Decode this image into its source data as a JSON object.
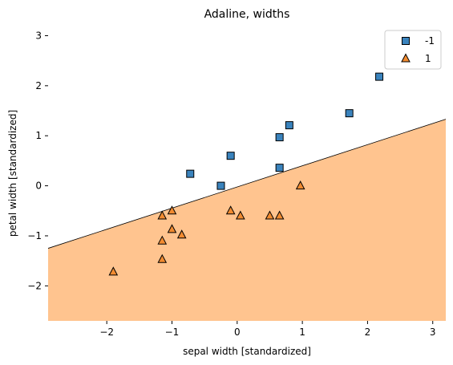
{
  "chart_data": {
    "type": "scatter",
    "title": "Adaline, widths",
    "xlabel": "sepal width [standardized]",
    "ylabel": "petal width [standardized]",
    "xlim": [
      -2.9,
      3.2
    ],
    "ylim": [
      -2.7,
      3.2
    ],
    "xticks": [
      -2,
      -1,
      0,
      1,
      2,
      3
    ],
    "yticks": [
      -2,
      -1,
      0,
      1,
      2,
      3
    ],
    "grid": false,
    "legend_position": "top-right",
    "decision_boundary": {
      "line": [
        [
          -2.9,
          -1.25
        ],
        [
          3.2,
          1.33
        ]
      ],
      "region_below_color": "#ffc48f",
      "region_above_color": "#ffffff",
      "line_color": "#000000"
    },
    "series": [
      {
        "name": "-1",
        "marker": "square",
        "color": "#3a83bd",
        "points": [
          [
            -0.72,
            0.24
          ],
          [
            -0.25,
            0.0
          ],
          [
            -0.1,
            0.6
          ],
          [
            0.65,
            0.97
          ],
          [
            0.65,
            0.36
          ],
          [
            0.8,
            1.21
          ],
          [
            1.72,
            1.45
          ],
          [
            2.18,
            2.18
          ]
        ]
      },
      {
        "name": "1",
        "marker": "triangle",
        "color": "#f28b30",
        "points": [
          [
            -1.9,
            -1.72
          ],
          [
            -1.15,
            -0.6
          ],
          [
            -1.0,
            -0.5
          ],
          [
            -1.0,
            -0.87
          ],
          [
            -0.85,
            -0.98
          ],
          [
            -1.15,
            -1.1
          ],
          [
            -1.15,
            -1.47
          ],
          [
            -0.1,
            -0.5
          ],
          [
            0.05,
            -0.6
          ],
          [
            0.5,
            -0.6
          ],
          [
            0.65,
            -0.6
          ],
          [
            0.97,
            0.0
          ]
        ]
      }
    ]
  }
}
